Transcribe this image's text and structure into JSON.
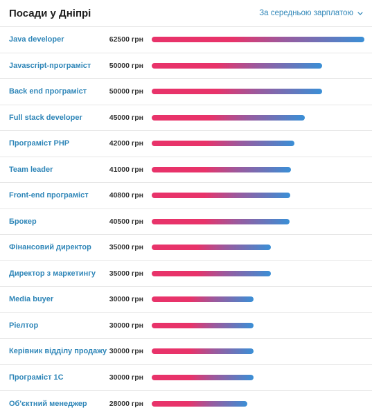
{
  "header": {
    "title": "Посади у Дніпрі",
    "sort_label": "За середньою зарплатою"
  },
  "max_salary": 62500,
  "colors": {
    "link": "#2f86b8",
    "bar_start": "#e8336a",
    "bar_end": "#3a8fd6"
  },
  "rows": [
    {
      "job": "Java developer",
      "salary": "62500 грн",
      "value": 62500
    },
    {
      "job": "Javascript-програміст",
      "salary": "50000 грн",
      "value": 50000
    },
    {
      "job": "Back end програміст",
      "salary": "50000 грн",
      "value": 50000
    },
    {
      "job": "Full stack developer",
      "salary": "45000 грн",
      "value": 45000
    },
    {
      "job": "Програміст PHP",
      "salary": "42000 грн",
      "value": 42000
    },
    {
      "job": "Team leader",
      "salary": "41000 грн",
      "value": 41000
    },
    {
      "job": "Front-end програміст",
      "salary": "40800 грн",
      "value": 40800
    },
    {
      "job": "Брокер",
      "salary": "40500 грн",
      "value": 40500
    },
    {
      "job": "Фінансовий директор",
      "salary": "35000 грн",
      "value": 35000
    },
    {
      "job": "Директор з маркетингу",
      "salary": "35000 грн",
      "value": 35000
    },
    {
      "job": "Media buyer",
      "salary": "30000 грн",
      "value": 30000
    },
    {
      "job": "Ріелтор",
      "salary": "30000 грн",
      "value": 30000
    },
    {
      "job": "Керівник відділу продажу",
      "salary": "30000 грн",
      "value": 30000
    },
    {
      "job": "Програміст 1С",
      "salary": "30000 грн",
      "value": 30000
    },
    {
      "job": "Об'єктний менеджер",
      "salary": "28000 грн",
      "value": 28000
    }
  ]
}
